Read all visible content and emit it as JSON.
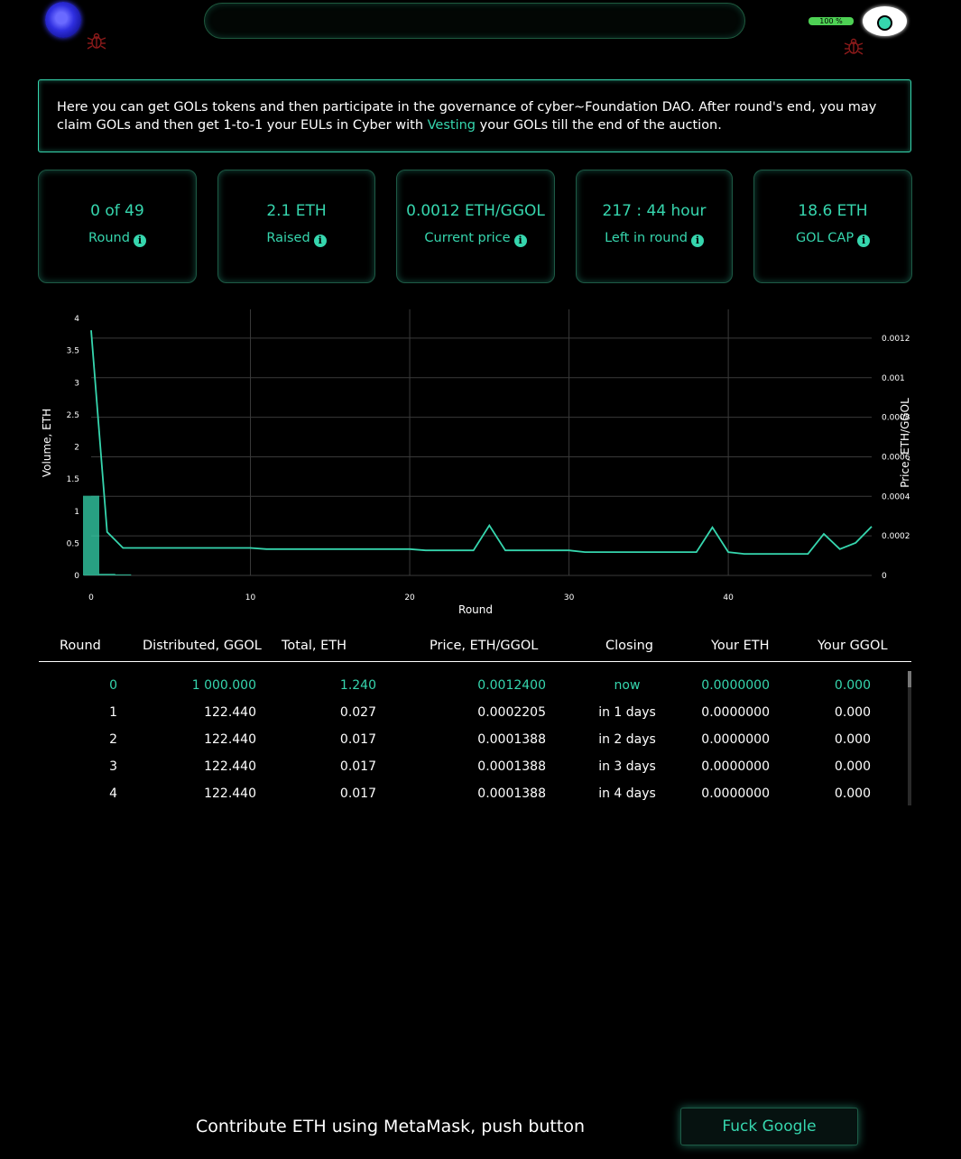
{
  "header": {
    "battery": {
      "label": "100 %",
      "level": 1.0
    },
    "icons": [
      "cyber-logo-icon",
      "bug-icon",
      "eye-icon"
    ]
  },
  "intro": {
    "text_before": "Here you can get GOLs tokens and then participate in the governance of cyber~Foundation DAO. After round's end, you may claim GOLs and then get 1-to-1 your EULs in Cyber with ",
    "link": "Vesting",
    "text_after": " your GOLs till the end of the auction."
  },
  "stats": [
    {
      "value": "0 of 49",
      "label": "Round"
    },
    {
      "value": "2.1 ETH",
      "label": "Raised"
    },
    {
      "value": "0.0012 ETH/GGOL",
      "label": "Current price"
    },
    {
      "value": "217 : 44 hour",
      "label": "Left in round"
    },
    {
      "value": "18.6 ETH",
      "label": "GOL CAP"
    }
  ],
  "chart_data": {
    "type": "line",
    "xlabel": "Round",
    "ylabel_left": "Volume, ETH",
    "ylabel_right": "Price, ETH/GGOL",
    "xlim": [
      0,
      49
    ],
    "ylim_left": [
      0,
      4
    ],
    "ylim_right": [
      0,
      0.0013
    ],
    "x_ticks": [
      0,
      10,
      20,
      30,
      40
    ],
    "y_ticks_left": [
      "0",
      "0.5",
      "1",
      "1.5",
      "2",
      "2.5",
      "3",
      "3.5",
      "4"
    ],
    "y_ticks_right": [
      "0",
      "0.0002",
      "0.0004",
      "0.0006",
      "0.0008",
      "0.001",
      "0.0012"
    ],
    "grid": true,
    "series": [
      {
        "name": "Volume, ETH",
        "type": "bar",
        "color": "#36d6ae",
        "x": [
          0,
          1,
          2
        ],
        "values": [
          1.24,
          0.027,
          0.017
        ]
      },
      {
        "name": "Price, ETH/GGOL",
        "type": "line",
        "color": "#36d6ae",
        "x": [
          0,
          1,
          2,
          3,
          4,
          5,
          6,
          7,
          8,
          9,
          10,
          11,
          12,
          13,
          14,
          15,
          16,
          17,
          18,
          19,
          20,
          21,
          22,
          23,
          24,
          25,
          26,
          27,
          28,
          29,
          30,
          31,
          32,
          33,
          34,
          35,
          36,
          37,
          38,
          39,
          40,
          41,
          42,
          43,
          44,
          45,
          46,
          47,
          48,
          49
        ],
        "values": [
          0.00124,
          0.00022,
          0.000139,
          0.000139,
          0.000139,
          0.000139,
          0.000139,
          0.000139,
          0.000139,
          0.000139,
          0.000139,
          0.000133,
          0.000133,
          0.000133,
          0.000133,
          0.000133,
          0.000133,
          0.000133,
          0.000133,
          0.000133,
          0.000133,
          0.000127,
          0.000127,
          0.000127,
          0.000127,
          0.000253,
          0.000127,
          0.000127,
          0.000127,
          0.000127,
          0.000127,
          0.000118,
          0.000118,
          0.000118,
          0.000118,
          0.000118,
          0.000118,
          0.000118,
          0.000118,
          0.000243,
          0.000118,
          0.000109,
          0.000109,
          0.000109,
          0.000109,
          0.000109,
          0.00021,
          0.000133,
          0.000165,
          0.000247
        ]
      }
    ]
  },
  "table": {
    "headers": [
      "Round",
      "Distributed, GGOL",
      "Total, ETH",
      "Price, ETH/GGOL",
      "Closing",
      "Your ETH",
      "Your GGOL"
    ],
    "rows": [
      [
        "0",
        "1 000.000",
        "1.240",
        "0.0012400",
        "now",
        "0.0000000",
        "0.000"
      ],
      [
        "1",
        "122.440",
        "0.027",
        "0.0002205",
        "in 1 days",
        "0.0000000",
        "0.000"
      ],
      [
        "2",
        "122.440",
        "0.017",
        "0.0001388",
        "in 2 days",
        "0.0000000",
        "0.000"
      ],
      [
        "3",
        "122.440",
        "0.017",
        "0.0001388",
        "in 3 days",
        "0.0000000",
        "0.000"
      ],
      [
        "4",
        "122.440",
        "0.017",
        "0.0001388",
        "in 4 days",
        "0.0000000",
        "0.000"
      ]
    ]
  },
  "footer": {
    "contribute_text": "Contribute ETH using MetaMask, push button",
    "cta_label": "Fuck Google"
  },
  "colors": {
    "accent": "#36d6ae",
    "bug": "#8b1a1a",
    "battery": "#4ed154"
  }
}
